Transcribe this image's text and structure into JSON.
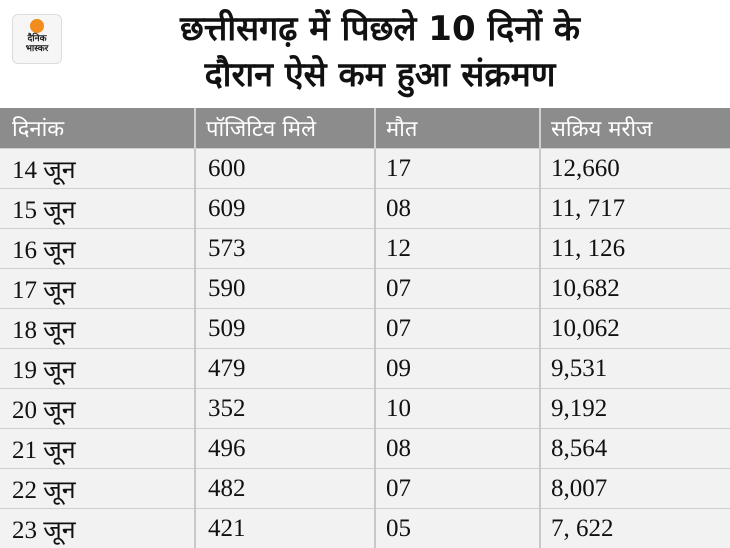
{
  "logo": {
    "line1": "दैनिक",
    "line2": "भास्कर"
  },
  "header": {
    "title_line1": "छत्तीसगढ़ में पिछले 10 दिनों के",
    "title_line2": "दौरान ऐसे कम हुआ संक्रमण"
  },
  "table": {
    "columns": [
      "दिनांक",
      "पॉजिटिव मिले",
      "मौत",
      "सक्रिय मरीज"
    ],
    "rows": [
      [
        "14 जून",
        "600",
        "17",
        "12,660"
      ],
      [
        "15 जून",
        "609",
        "08",
        "11, 717"
      ],
      [
        "16 जून",
        "573",
        "12",
        "11, 126"
      ],
      [
        "17 जून",
        "590",
        "07",
        "10,682"
      ],
      [
        "18 जून",
        "509",
        "07",
        "10,062"
      ],
      [
        "19 जून",
        "479",
        "09",
        "9,531"
      ],
      [
        "20 जून",
        "352",
        "10",
        "9,192"
      ],
      [
        "21 जून",
        "496",
        "08",
        "8,564"
      ],
      [
        "22 जून",
        "482",
        "07",
        "8,007"
      ],
      [
        "23 जून",
        " 421",
        "05",
        "7, 622"
      ]
    ]
  }
}
